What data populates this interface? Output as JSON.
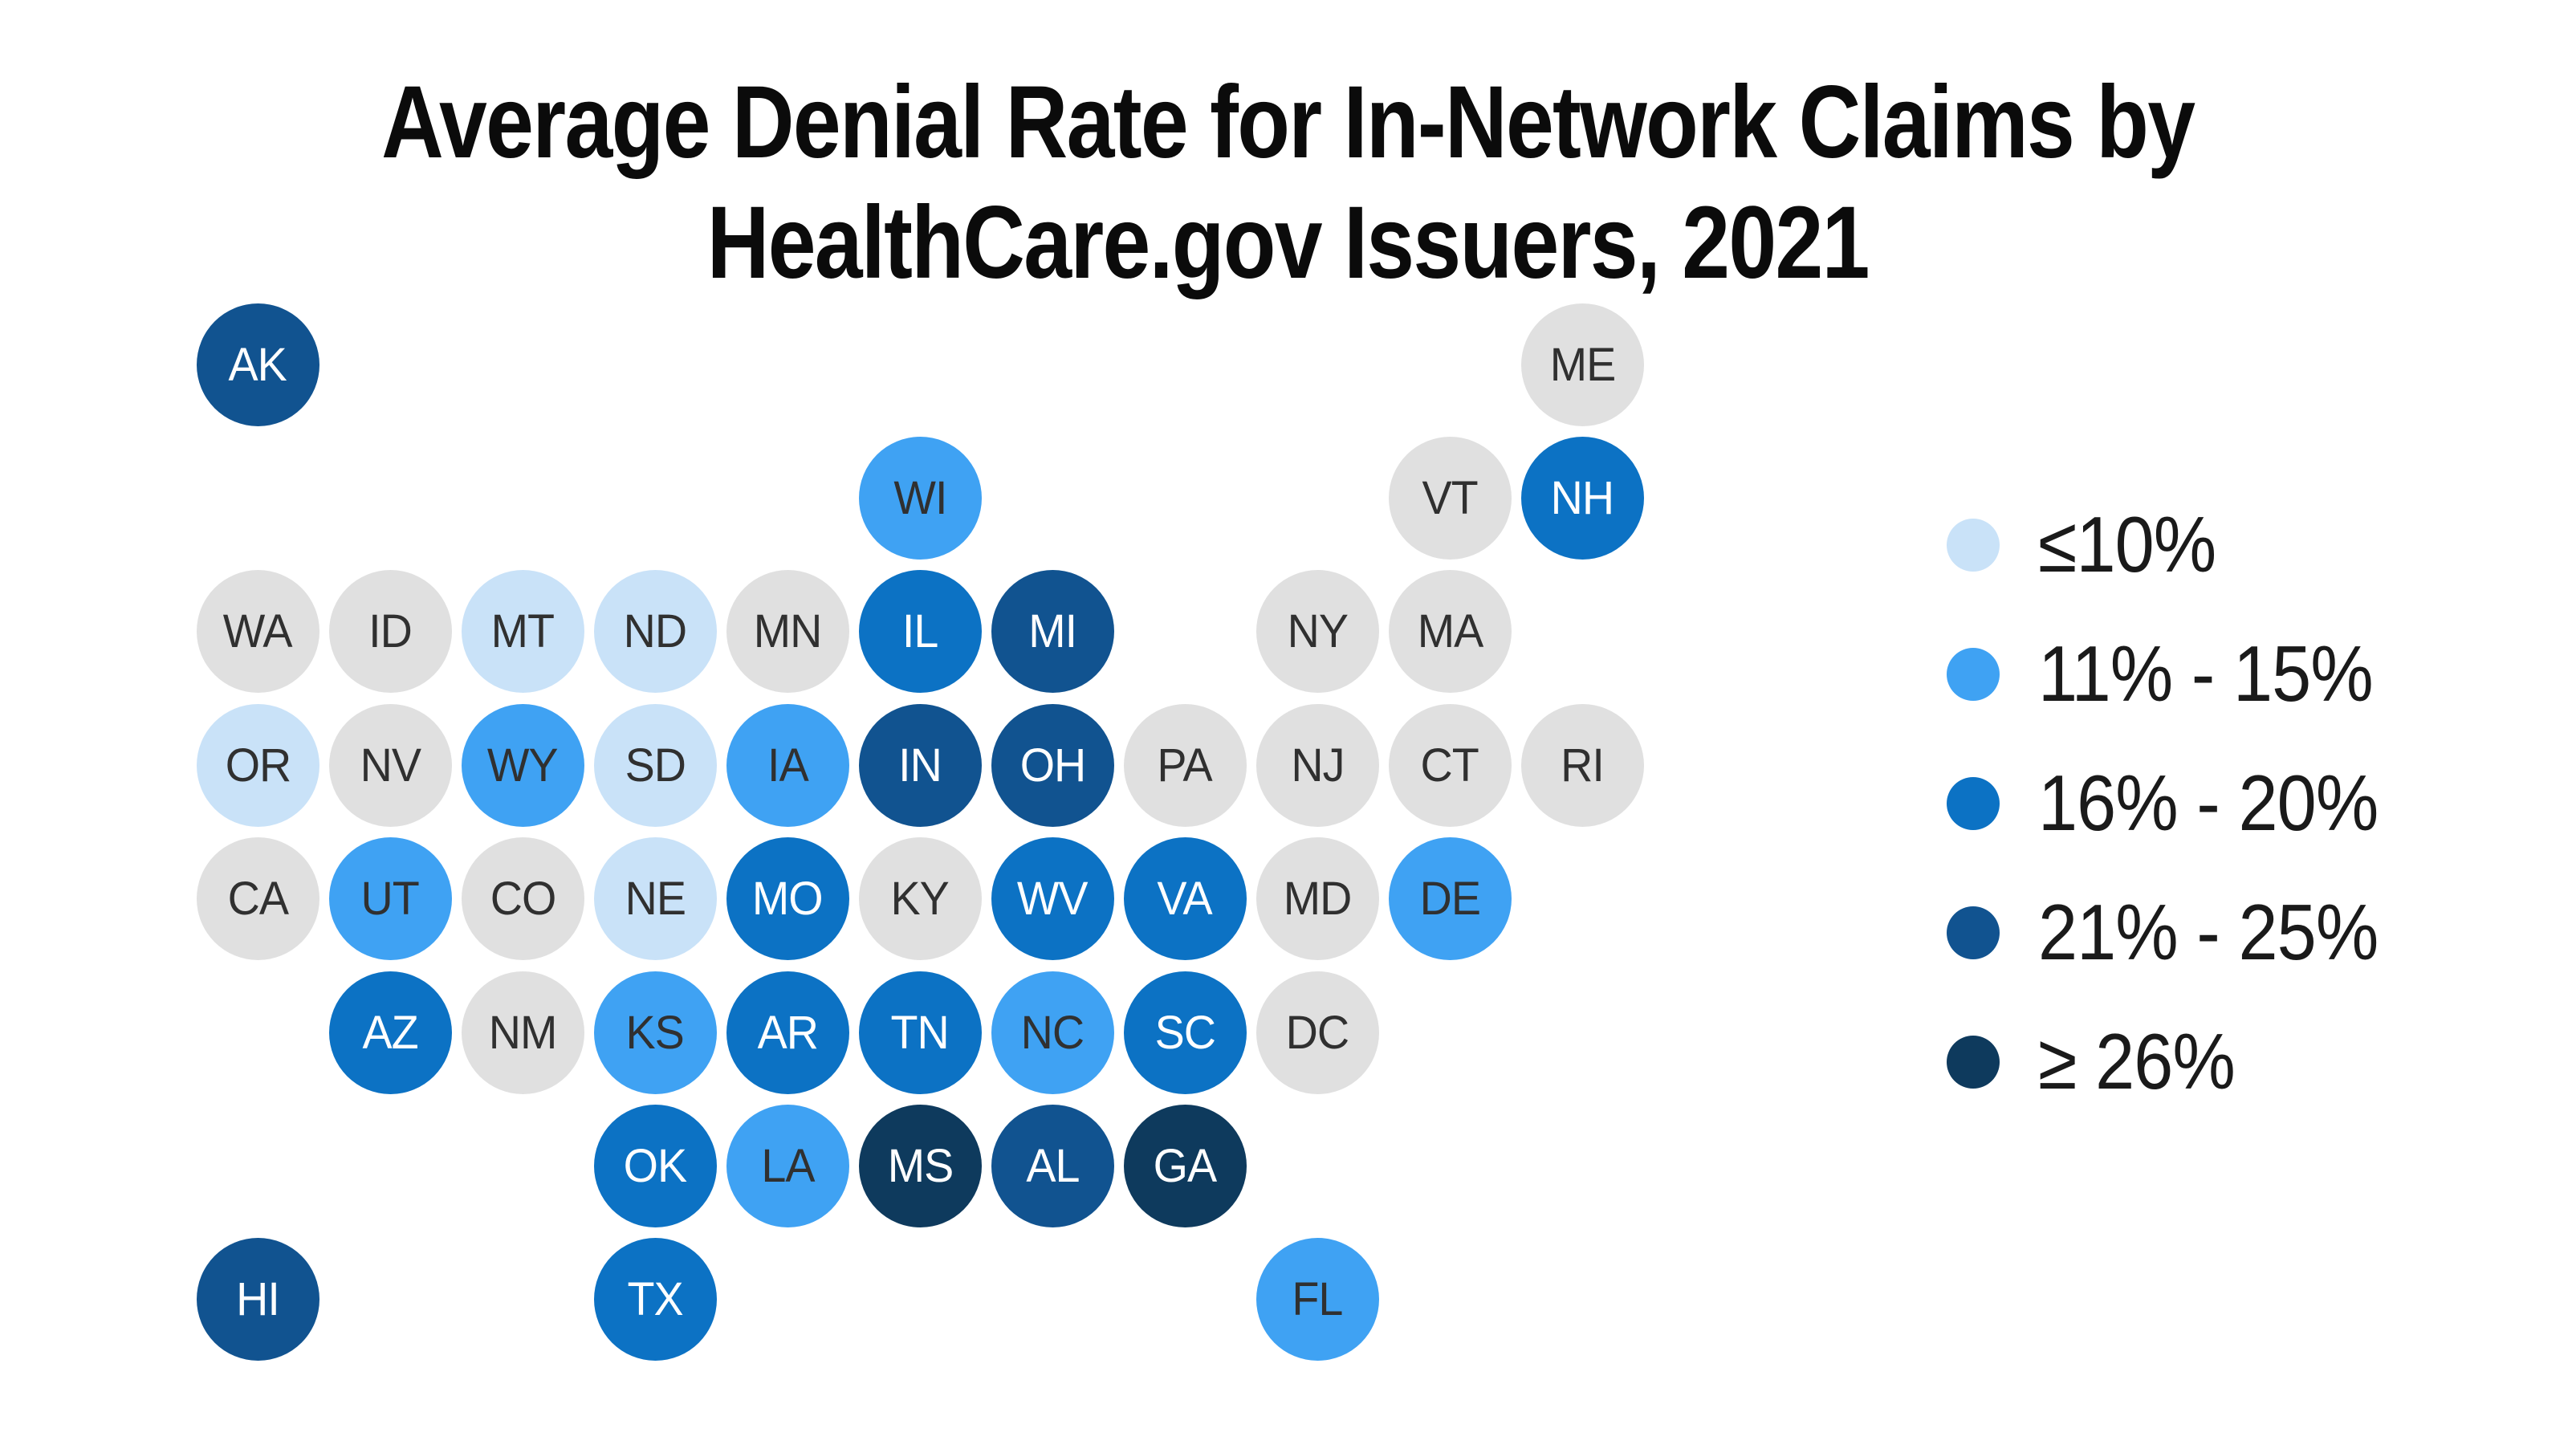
{
  "title_lines": [
    "Average Denial Rate for In-Network Claims by",
    "HealthCare.gov Issuers, 2021"
  ],
  "chart_data": {
    "type": "heatmap",
    "subtype": "us_state_tile_cartogram",
    "title": "Average Denial Rate for In-Network Claims by HealthCare.gov Issuers, 2021",
    "legend_position": "right",
    "legend": [
      {
        "bucket": "b1",
        "label": "≤10%",
        "color": "#c9e2f8"
      },
      {
        "bucket": "b2",
        "label": "11% - 15%",
        "color": "#3fa2f3"
      },
      {
        "bucket": "b3",
        "label": "16% - 20%",
        "color": "#0c72c4"
      },
      {
        "bucket": "b4",
        "label": "21% - 25%",
        "color": "#115390"
      },
      {
        "bucket": "b5",
        "label": "≥ 26%",
        "color": "#0e3a5d"
      }
    ],
    "no_data": {
      "bucket": "none",
      "color": "#e0e0e0"
    },
    "label_colors": {
      "dark": "#303030",
      "light": "#ffffff"
    },
    "states": [
      {
        "abbr": "AK",
        "col": 0,
        "row": 0,
        "bucket": "b4"
      },
      {
        "abbr": "ME",
        "col": 10,
        "row": 0,
        "bucket": "none"
      },
      {
        "abbr": "WI",
        "col": 5,
        "row": 1,
        "bucket": "b2"
      },
      {
        "abbr": "VT",
        "col": 9,
        "row": 1,
        "bucket": "none"
      },
      {
        "abbr": "NH",
        "col": 10,
        "row": 1,
        "bucket": "b3"
      },
      {
        "abbr": "WA",
        "col": 0,
        "row": 2,
        "bucket": "none"
      },
      {
        "abbr": "ID",
        "col": 1,
        "row": 2,
        "bucket": "none"
      },
      {
        "abbr": "MT",
        "col": 2,
        "row": 2,
        "bucket": "b1"
      },
      {
        "abbr": "ND",
        "col": 3,
        "row": 2,
        "bucket": "b1"
      },
      {
        "abbr": "MN",
        "col": 4,
        "row": 2,
        "bucket": "none"
      },
      {
        "abbr": "IL",
        "col": 5,
        "row": 2,
        "bucket": "b3"
      },
      {
        "abbr": "MI",
        "col": 6,
        "row": 2,
        "bucket": "b4"
      },
      {
        "abbr": "NY",
        "col": 8,
        "row": 2,
        "bucket": "none"
      },
      {
        "abbr": "MA",
        "col": 9,
        "row": 2,
        "bucket": "none"
      },
      {
        "abbr": "OR",
        "col": 0,
        "row": 3,
        "bucket": "b1"
      },
      {
        "abbr": "NV",
        "col": 1,
        "row": 3,
        "bucket": "none"
      },
      {
        "abbr": "WY",
        "col": 2,
        "row": 3,
        "bucket": "b2"
      },
      {
        "abbr": "SD",
        "col": 3,
        "row": 3,
        "bucket": "b1"
      },
      {
        "abbr": "IA",
        "col": 4,
        "row": 3,
        "bucket": "b2"
      },
      {
        "abbr": "IN",
        "col": 5,
        "row": 3,
        "bucket": "b4"
      },
      {
        "abbr": "OH",
        "col": 6,
        "row": 3,
        "bucket": "b4"
      },
      {
        "abbr": "PA",
        "col": 7,
        "row": 3,
        "bucket": "none"
      },
      {
        "abbr": "NJ",
        "col": 8,
        "row": 3,
        "bucket": "none"
      },
      {
        "abbr": "CT",
        "col": 9,
        "row": 3,
        "bucket": "none"
      },
      {
        "abbr": "RI",
        "col": 10,
        "row": 3,
        "bucket": "none"
      },
      {
        "abbr": "CA",
        "col": 0,
        "row": 4,
        "bucket": "none"
      },
      {
        "abbr": "UT",
        "col": 1,
        "row": 4,
        "bucket": "b2"
      },
      {
        "abbr": "CO",
        "col": 2,
        "row": 4,
        "bucket": "none"
      },
      {
        "abbr": "NE",
        "col": 3,
        "row": 4,
        "bucket": "b1"
      },
      {
        "abbr": "MO",
        "col": 4,
        "row": 4,
        "bucket": "b3"
      },
      {
        "abbr": "KY",
        "col": 5,
        "row": 4,
        "bucket": "none"
      },
      {
        "abbr": "WV",
        "col": 6,
        "row": 4,
        "bucket": "b3"
      },
      {
        "abbr": "VA",
        "col": 7,
        "row": 4,
        "bucket": "b3"
      },
      {
        "abbr": "MD",
        "col": 8,
        "row": 4,
        "bucket": "none"
      },
      {
        "abbr": "DE",
        "col": 9,
        "row": 4,
        "bucket": "b2"
      },
      {
        "abbr": "AZ",
        "col": 1,
        "row": 5,
        "bucket": "b3"
      },
      {
        "abbr": "NM",
        "col": 2,
        "row": 5,
        "bucket": "none"
      },
      {
        "abbr": "KS",
        "col": 3,
        "row": 5,
        "bucket": "b2"
      },
      {
        "abbr": "AR",
        "col": 4,
        "row": 5,
        "bucket": "b3"
      },
      {
        "abbr": "TN",
        "col": 5,
        "row": 5,
        "bucket": "b3"
      },
      {
        "abbr": "NC",
        "col": 6,
        "row": 5,
        "bucket": "b2"
      },
      {
        "abbr": "SC",
        "col": 7,
        "row": 5,
        "bucket": "b3"
      },
      {
        "abbr": "DC",
        "col": 8,
        "row": 5,
        "bucket": "none"
      },
      {
        "abbr": "OK",
        "col": 3,
        "row": 6,
        "bucket": "b3"
      },
      {
        "abbr": "LA",
        "col": 4,
        "row": 6,
        "bucket": "b2"
      },
      {
        "abbr": "MS",
        "col": 5,
        "row": 6,
        "bucket": "b5"
      },
      {
        "abbr": "AL",
        "col": 6,
        "row": 6,
        "bucket": "b4"
      },
      {
        "abbr": "GA",
        "col": 7,
        "row": 6,
        "bucket": "b5"
      },
      {
        "abbr": "HI",
        "col": 0,
        "row": 7,
        "bucket": "b4"
      },
      {
        "abbr": "TX",
        "col": 3,
        "row": 7,
        "bucket": "b3"
      },
      {
        "abbr": "FL",
        "col": 8,
        "row": 7,
        "bucket": "b2"
      }
    ]
  }
}
